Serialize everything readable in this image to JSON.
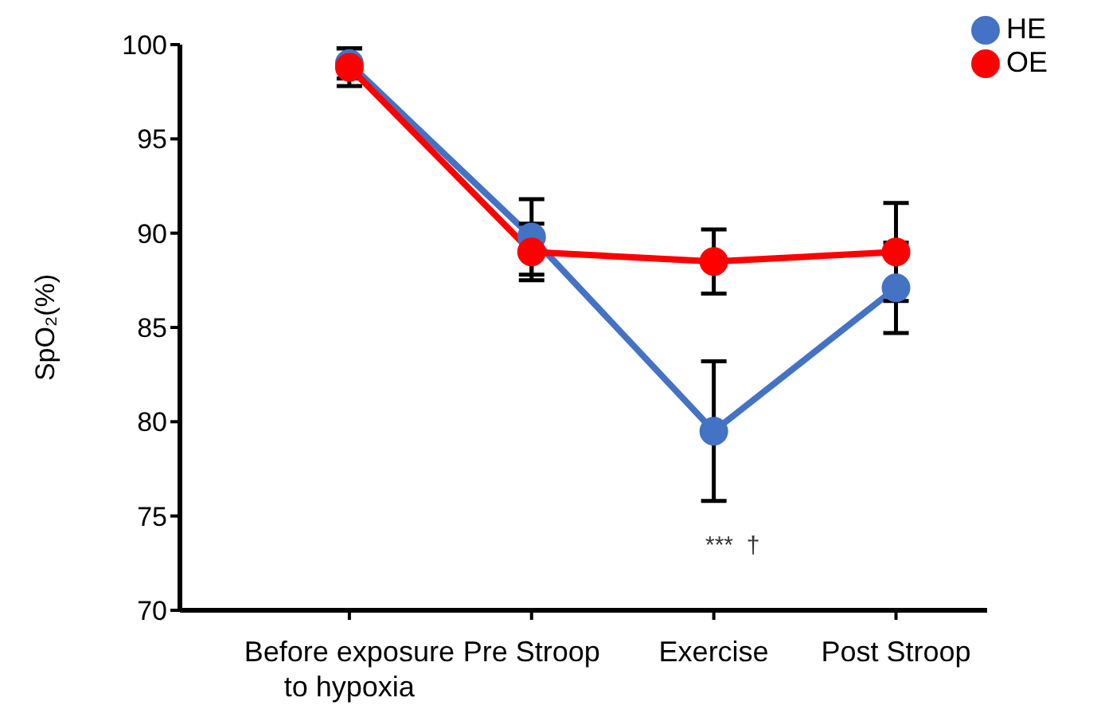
{
  "chart_data": {
    "type": "line",
    "ylabel": "SpO₂(%)",
    "categories": [
      "Before exposure to hypoxia",
      "Pre Stroop",
      "Exercise",
      "Post Stroop"
    ],
    "series": [
      {
        "name": "HE",
        "color": "#4472c4",
        "values": [
          99.0,
          89.8,
          79.5,
          87.1
        ],
        "errors": [
          [
            98.2,
            99.8
          ],
          [
            87.8,
            91.8
          ],
          [
            75.8,
            83.2
          ],
          [
            84.7,
            89.5
          ]
        ]
      },
      {
        "name": "OE",
        "color": "#ff0000",
        "values": [
          98.8,
          89.0,
          88.5,
          89.0
        ],
        "errors": [
          [
            97.8,
            99.8
          ],
          [
            87.5,
            90.5
          ],
          [
            86.8,
            90.2
          ],
          [
            86.4,
            91.6
          ]
        ]
      }
    ],
    "ylim": [
      70,
      100
    ],
    "yticks": [
      70,
      75,
      80,
      85,
      90,
      95,
      100
    ],
    "grid": false,
    "legend": "top right",
    "marker": "circle",
    "line_style": "solid",
    "annotations": [
      "***  †"
    ]
  }
}
